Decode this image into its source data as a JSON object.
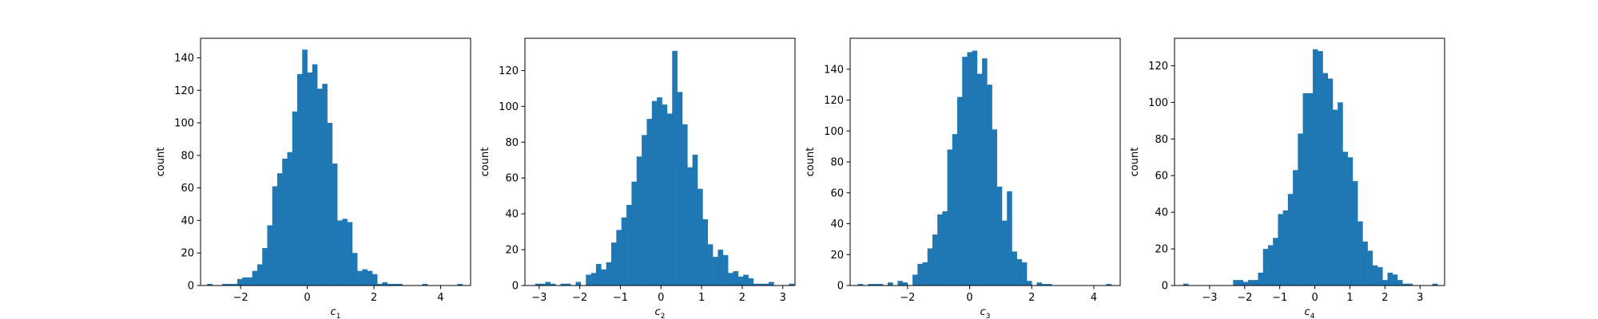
{
  "figure": {
    "background": "#ffffff",
    "bar_color": "#1f77b4"
  },
  "chart_data": [
    {
      "type": "bar",
      "title": "",
      "xlabel": "c",
      "xlabel_sub": "1",
      "ylabel": "count",
      "xlim": [
        -3.2,
        4.9
      ],
      "ylim": [
        0,
        152
      ],
      "xticks": [
        -2,
        0,
        2,
        4
      ],
      "yticks": [
        0,
        20,
        40,
        60,
        80,
        100,
        120,
        140
      ],
      "bin_start": -3.0,
      "bin_width": 0.15,
      "values": [
        1,
        0,
        0,
        1,
        1,
        1,
        4,
        5,
        5,
        9,
        13,
        23,
        37,
        61,
        69,
        78,
        82,
        107,
        130,
        145,
        131,
        136,
        121,
        124,
        100,
        75,
        40,
        41,
        39,
        20,
        9,
        10,
        9,
        7,
        1,
        2,
        1,
        1,
        1,
        0,
        0,
        0,
        0,
        1,
        0,
        0,
        0,
        0,
        0,
        0,
        1
      ]
    },
    {
      "type": "bar",
      "title": "",
      "xlabel": "c",
      "xlabel_sub": "2",
      "ylabel": "count",
      "xlim": [
        -3.35,
        3.3
      ],
      "ylim": [
        0,
        138
      ],
      "xticks": [
        -3,
        -2,
        -1,
        0,
        1,
        2,
        3
      ],
      "yticks": [
        0,
        20,
        40,
        60,
        80,
        100,
        120
      ],
      "bin_start": -3.1,
      "bin_width": 0.125,
      "values": [
        1,
        1,
        2,
        1,
        0,
        1,
        1,
        0,
        2,
        0,
        6,
        7,
        12,
        9,
        13,
        24,
        31,
        38,
        45,
        58,
        72,
        84,
        93,
        103,
        105,
        101,
        96,
        131,
        108,
        90,
        66,
        73,
        54,
        37,
        23,
        16,
        20,
        17,
        7,
        8,
        5,
        6,
        4,
        1,
        1,
        1,
        2,
        0,
        0,
        0,
        1
      ]
    },
    {
      "type": "bar",
      "title": "",
      "xlabel": "c",
      "xlabel_sub": "3",
      "ylabel": "count",
      "xlim": [
        -3.85,
        4.85
      ],
      "ylim": [
        0,
        160
      ],
      "xticks": [
        -2,
        0,
        2,
        4
      ],
      "yticks": [
        0,
        20,
        40,
        60,
        80,
        100,
        120,
        140
      ],
      "bin_start": -3.6,
      "bin_width": 0.16,
      "values": [
        1,
        0,
        1,
        1,
        1,
        0,
        2,
        0,
        3,
        2,
        0,
        7,
        14,
        15,
        24,
        33,
        46,
        48,
        88,
        98,
        122,
        148,
        151,
        152,
        137,
        147,
        130,
        101,
        64,
        42,
        61,
        22,
        17,
        15,
        3,
        0,
        2,
        1,
        1,
        0,
        0,
        0,
        0,
        0,
        0,
        0,
        0,
        0,
        0,
        0,
        1
      ]
    },
    {
      "type": "bar",
      "title": "",
      "xlabel": "c",
      "xlabel_sub": "4",
      "ylabel": "count",
      "xlim": [
        -4.0,
        3.7
      ],
      "ylim": [
        0,
        135
      ],
      "xticks": [
        -3,
        -2,
        -1,
        0,
        1,
        2,
        3
      ],
      "yticks": [
        0,
        20,
        40,
        60,
        80,
        100,
        120
      ],
      "bin_start": -3.75,
      "bin_width": 0.142,
      "values": [
        1,
        0,
        0,
        0,
        0,
        0,
        0,
        0,
        0,
        0,
        3,
        3,
        2,
        3,
        3,
        7,
        20,
        22,
        26,
        39,
        41,
        50,
        63,
        83,
        105,
        105,
        129,
        128,
        116,
        113,
        96,
        100,
        73,
        70,
        57,
        35,
        24,
        19,
        11,
        10,
        3,
        7,
        6,
        3,
        1,
        1,
        0,
        0,
        0,
        0,
        1
      ]
    }
  ]
}
